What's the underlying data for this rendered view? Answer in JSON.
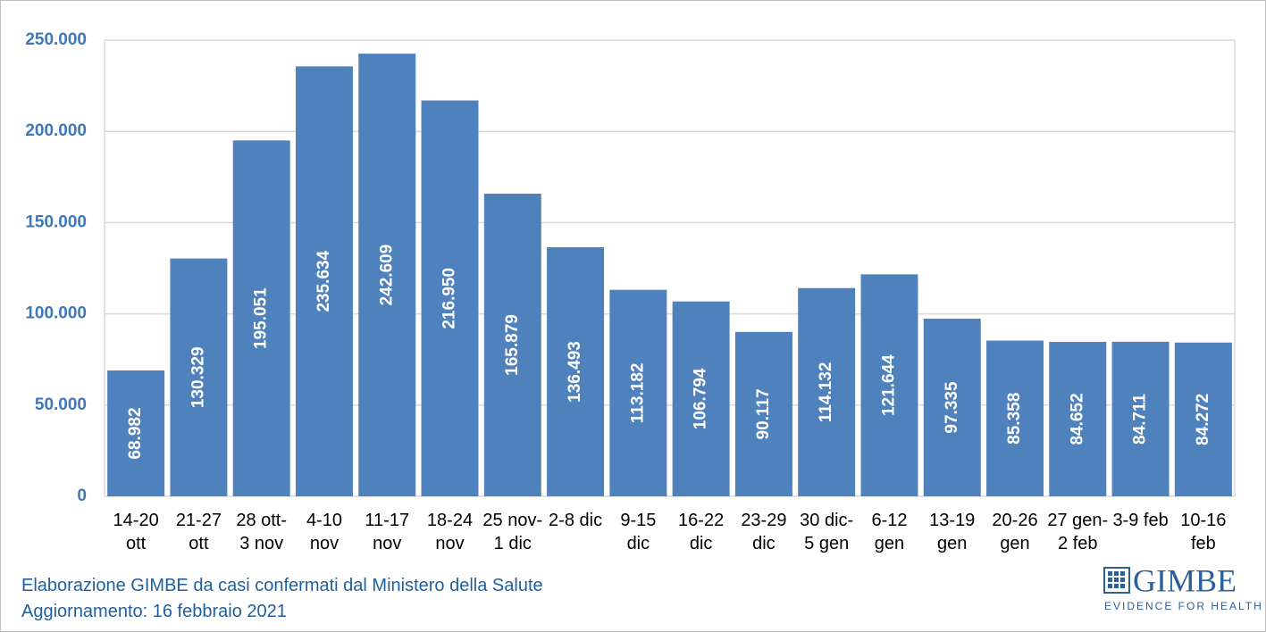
{
  "chart_data": {
    "type": "bar",
    "categories": [
      "14-20\nott",
      "21-27\nott",
      "28 ott-\n3 nov",
      "4-10\nnov",
      "11-17\nnov",
      "18-24\nnov",
      "25 nov-\n1 dic",
      "2-8 dic",
      "9-15\ndic",
      "16-22\ndic",
      "23-29\ndic",
      "30 dic-\n5 gen",
      "6-12\ngen",
      "13-19\ngen",
      "20-26\ngen",
      "27 gen-\n2 feb",
      "3-9 feb",
      "10-16\nfeb"
    ],
    "values": [
      68982,
      130329,
      195051,
      235634,
      242609,
      216950,
      165879,
      136493,
      113182,
      106794,
      90117,
      114132,
      121644,
      97335,
      85358,
      84652,
      84711,
      84272
    ],
    "value_labels": [
      "68.982",
      "130.329",
      "195.051",
      "235.634",
      "242.609",
      "216.950",
      "165.879",
      "136.493",
      "113.182",
      "106.794",
      "90.117",
      "114.132",
      "121.644",
      "97.335",
      "85.358",
      "84.652",
      "84.711",
      "84.272"
    ],
    "color": "#4f81bd",
    "ylim": [
      0,
      250000
    ],
    "yticks": [
      0,
      {
        "value": 50000,
        "label": "50.000"
      },
      {
        "value": 100000,
        "label": "100.000"
      },
      {
        "value": 150000,
        "label": "150.000"
      },
      {
        "value": 200000,
        "label": "200.000"
      },
      {
        "value": 250000,
        "label": "250.000"
      }
    ],
    "grid": true
  },
  "footer": {
    "source": "Elaborazione GIMBE da casi confermati dal Ministero della Salute",
    "updated": "Aggiornamento: 16 febbraio 2021"
  },
  "logo": {
    "name": "GIMBE",
    "tagline": "EVIDENCE FOR HEALTH"
  }
}
